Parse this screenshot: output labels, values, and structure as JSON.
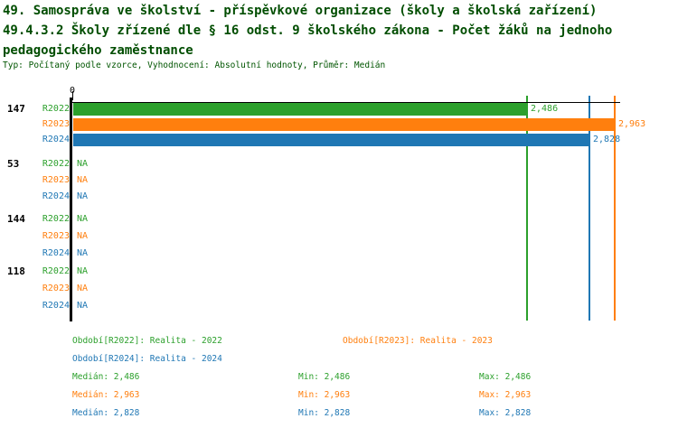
{
  "header": {
    "line1": "49. Samospráva ve školství - příspěvkové organizace (školy a školská zařízení)",
    "line2": "49.4.3.2 Školy zřízené dle § 16 odst. 9 školského zákona - Počet žáků na jednoho",
    "line3": "pedagogického zaměstnance",
    "subtitle": "Typ: Počítaný podle vzorce, Vyhodnocení: Absolutní hodnoty, Průměr: Medián"
  },
  "colors": {
    "title": "#004d00",
    "axis": "#000000",
    "series_r2022": "#2ca02c",
    "series_r2023": "#ff7f0e",
    "series_r2024": "#1f77b4"
  },
  "chart_data": {
    "type": "bar",
    "orientation": "horizontal",
    "value_format": "decimal-comma",
    "origin_label": "0",
    "xlim": [
      0,
      2.99
    ],
    "grid": false,
    "series_names": [
      "R2022",
      "R2023",
      "R2024"
    ],
    "groups": [
      {
        "label": "147",
        "rows": [
          {
            "series": "R2022",
            "value": 2.486,
            "display": "2,486"
          },
          {
            "series": "R2023",
            "value": 2.963,
            "display": "2,963"
          },
          {
            "series": "R2024",
            "value": 2.828,
            "display": "2,828"
          }
        ]
      },
      {
        "label": "53",
        "rows": [
          {
            "series": "R2022",
            "value": null,
            "display": "NA"
          },
          {
            "series": "R2023",
            "value": null,
            "display": "NA"
          },
          {
            "series": "R2024",
            "value": null,
            "display": "NA"
          }
        ]
      },
      {
        "label": "144",
        "rows": [
          {
            "series": "R2022",
            "value": null,
            "display": "NA"
          },
          {
            "series": "R2023",
            "value": null,
            "display": "NA"
          },
          {
            "series": "R2024",
            "value": null,
            "display": "NA"
          }
        ]
      },
      {
        "label": "118",
        "rows": [
          {
            "series": "R2022",
            "value": null,
            "display": "NA"
          },
          {
            "series": "R2023",
            "value": null,
            "display": "NA"
          },
          {
            "series": "R2024",
            "value": null,
            "display": "NA"
          }
        ]
      }
    ],
    "median_values": [
      2.486,
      2.963,
      2.828
    ]
  },
  "legend": {
    "items": [
      {
        "text": "Období[R2022]: Realita - 2022"
      },
      {
        "text": "Období[R2023]: Realita - 2023"
      },
      {
        "text": "Období[R2024]: Realita - 2024"
      }
    ]
  },
  "stats": {
    "rows": [
      {
        "median": "Medián: 2,486",
        "min": "Min: 2,486",
        "max": "Max: 2,486"
      },
      {
        "median": "Medián: 2,963",
        "min": "Min: 2,963",
        "max": "Max: 2,963"
      },
      {
        "median": "Medián: 2,828",
        "min": "Min: 2,828",
        "max": "Max: 2,828"
      }
    ]
  }
}
